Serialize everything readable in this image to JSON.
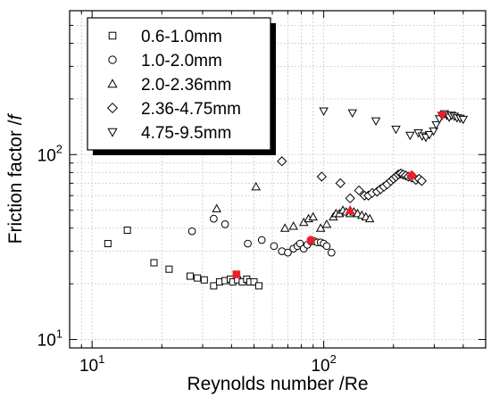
{
  "chart_data": {
    "type": "scatter",
    "title": "",
    "xlabel": "Reynolds number /Re",
    "ylabel_main": "Friction factor /",
    "ylabel_var": "f",
    "xscale": "log",
    "yscale": "log",
    "xlim": [
      8,
      500
    ],
    "ylim": [
      9,
      600
    ],
    "x_ticks": [
      {
        "value": 10,
        "base": "10",
        "exp": "1"
      },
      {
        "value": 100,
        "base": "10",
        "exp": "2"
      }
    ],
    "y_ticks": [
      {
        "value": 10,
        "base": "10",
        "exp": "1"
      },
      {
        "value": 100,
        "base": "10",
        "exp": "2"
      }
    ],
    "grid": true,
    "legend_position": "top-left",
    "colors": {
      "marker_edge": "#000000",
      "highlight": "#e8202a",
      "grid": "#c8c8c8"
    },
    "series": [
      {
        "name": "0.6-1.0mm",
        "marker": "square",
        "x": [
          11.7,
          14.2,
          18.5,
          21.5,
          26.5,
          28.5,
          30.5,
          33.5,
          35.5,
          37.5,
          39.5,
          40.5,
          42.5,
          44.5,
          46.5,
          48,
          50,
          52.5
        ],
        "y": [
          33.0,
          39.0,
          26.0,
          24.0,
          22.0,
          21.5,
          21.0,
          19.5,
          20.5,
          20.8,
          21.2,
          20.5,
          21.0,
          20.5,
          21.2,
          20.5,
          20.5,
          19.5
        ]
      },
      {
        "name": "1.0-2.0mm",
        "marker": "circle",
        "x": [
          27,
          33.5,
          37.5,
          47,
          54,
          61,
          66,
          70,
          74,
          77,
          79,
          82,
          85,
          88,
          91,
          94,
          97,
          100,
          103,
          108
        ],
        "y": [
          38.5,
          45,
          42,
          33,
          34.5,
          32,
          30,
          29.5,
          31,
          32,
          33,
          31,
          32.5,
          34,
          34,
          33.5,
          33.5,
          33,
          32,
          29.5
        ]
      },
      {
        "name": "2.0-2.36mm",
        "marker": "triangle-up",
        "x": [
          34.5,
          51,
          68,
          74,
          82,
          86,
          90,
          97,
          103,
          110,
          113,
          117,
          121,
          125,
          130,
          135,
          140,
          146,
          152,
          158
        ],
        "y": [
          51,
          67,
          40,
          41,
          43,
          45,
          46,
          40,
          42,
          46,
          48,
          48,
          50,
          49,
          48,
          49,
          48,
          47,
          46,
          45
        ]
      },
      {
        "name": "2.36-4.75mm",
        "marker": "diamond",
        "x": [
          66,
          98,
          118,
          130,
          142,
          150,
          156,
          162,
          170,
          176,
          182,
          188,
          195,
          200,
          205,
          210,
          215,
          220,
          226,
          232,
          240,
          250,
          258,
          265
        ],
        "y": [
          92,
          76,
          70,
          58,
          64,
          60,
          60,
          62,
          63,
          65,
          67,
          69,
          72,
          74,
          76,
          78,
          79,
          78,
          77,
          76,
          75,
          73,
          74,
          72
        ]
      },
      {
        "name": "4.75-9.5mm",
        "marker": "triangle-down",
        "x": [
          100,
          133,
          168,
          205,
          236,
          256,
          266,
          276,
          286,
          298,
          306,
          316,
          324,
          332,
          340,
          348,
          356,
          366,
          376,
          388,
          400
        ],
        "y": [
          172,
          168,
          152,
          137,
          127,
          131,
          126,
          124,
          128,
          134,
          145,
          156,
          162,
          166,
          163,
          159,
          163,
          161,
          158,
          157,
          155
        ]
      }
    ],
    "highlights": [
      {
        "marker": "square",
        "x": 42,
        "y": 22.5
      },
      {
        "marker": "circle",
        "x": 88,
        "y": 34.5
      },
      {
        "marker": "triangle-up",
        "x": 130,
        "y": 50
      },
      {
        "marker": "diamond",
        "x": 240,
        "y": 77
      },
      {
        "marker": "triangle-down",
        "x": 325,
        "y": 163
      }
    ]
  }
}
